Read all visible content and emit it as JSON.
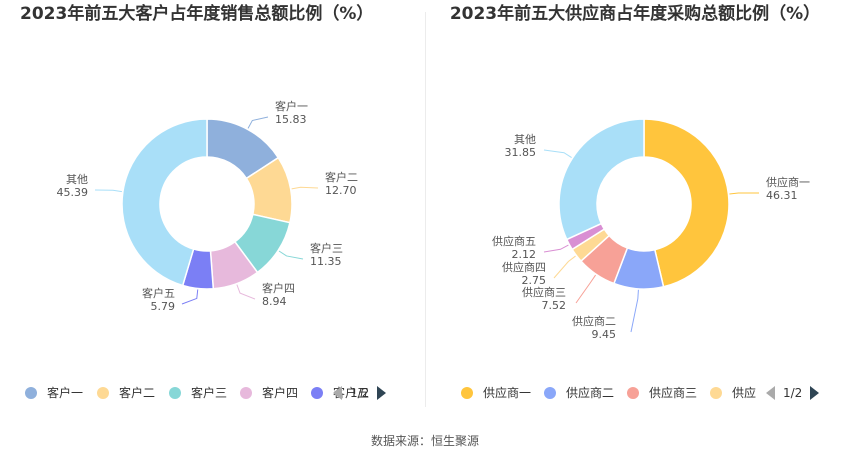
{
  "charts": [
    {
      "id": "left",
      "title": "2023年前五大客户占年度销售总额比例（%）",
      "legend_visible": [
        "客户一",
        "客户二",
        "客户三",
        "客户四",
        "客户五"
      ],
      "pager": "1/2",
      "chart_data": {
        "type": "pie",
        "donut": true,
        "slices": [
          {
            "label": "客户一",
            "value": 15.83,
            "value_text": "15.83",
            "color": "#8fb0dc"
          },
          {
            "label": "客户二",
            "value": 12.7,
            "value_text": "12.70",
            "color": "#fed994"
          },
          {
            "label": "客户三",
            "value": 11.35,
            "value_text": "11.35",
            "color": "#87d7d7"
          },
          {
            "label": "客户四",
            "value": 8.94,
            "value_text": "8.94",
            "color": "#e7b9dc"
          },
          {
            "label": "客户五",
            "value": 5.79,
            "value_text": "5.79",
            "color": "#7b7ff5"
          },
          {
            "label": "其他",
            "value": 45.39,
            "value_text": "45.39",
            "color": "#a9dff8"
          }
        ]
      }
    },
    {
      "id": "right",
      "title": "2023年前五大供应商占年度采购总额比例（%）",
      "legend_visible": [
        "供应商一",
        "供应商二",
        "供应商三",
        "供应"
      ],
      "pager": "1/2",
      "chart_data": {
        "type": "pie",
        "donut": true,
        "slices": [
          {
            "label": "供应商一",
            "value": 46.31,
            "value_text": "46.31",
            "color": "#ffc53d"
          },
          {
            "label": "供应商二",
            "value": 9.45,
            "value_text": "9.45",
            "color": "#8aa7f9"
          },
          {
            "label": "供应商三",
            "value": 7.52,
            "value_text": "7.52",
            "color": "#f7a197"
          },
          {
            "label": "供应商四",
            "value": 2.75,
            "value_text": "2.75",
            "color": "#fed994"
          },
          {
            "label": "供应商五",
            "value": 2.12,
            "value_text": "2.12",
            "color": "#d98fd3"
          },
          {
            "label": "其他",
            "value": 31.85,
            "value_text": "31.85",
            "color": "#a9dff8"
          }
        ]
      }
    }
  ],
  "source": "数据来源：恒生聚源"
}
